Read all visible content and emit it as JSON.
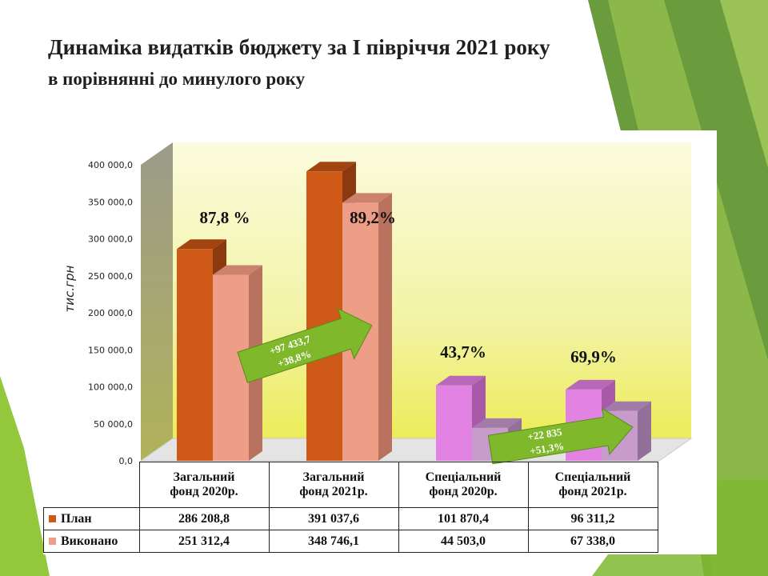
{
  "slide": {
    "title_line1": "Динаміка видатків бюджету за І півріччя 2021 року",
    "title_line2": "в порівнянні до минулого року"
  },
  "colors": {
    "plan_front": "#cf5a18",
    "plan_side": "#8a3a0e",
    "plan_top": "#a2440f",
    "exec_front": "#ee9d86",
    "exec_side": "#b8725e",
    "exec_top": "#cc826c",
    "spec_plan_front": "#e282e2",
    "spec_plan_side": "#a85aa8",
    "spec_plan_top": "#b868b8",
    "spec_exec_front": "#c79ccb",
    "spec_exec_side": "#93709a",
    "spec_exec_top": "#a37ba8",
    "arrow": "#7fb82a",
    "accent_green": "#8cc63f"
  },
  "chart_data": {
    "type": "bar",
    "ylabel": "тис.грн",
    "ylim": [
      0,
      400000
    ],
    "yticks": [
      "0,0",
      "50 000,0",
      "100 000,0",
      "150 000,0",
      "200 000,0",
      "250 000,0",
      "300 000,0",
      "350 000,0",
      "400 000,0"
    ],
    "categories": [
      [
        "Загальний",
        "фонд 2020р."
      ],
      [
        "Загальний",
        "фонд 2021р."
      ],
      [
        "Спеціальний",
        "фонд 2020р."
      ],
      [
        "Спеціальний",
        "фонд 2021р."
      ]
    ],
    "series": [
      {
        "name": "План",
        "values": [
          286208.8,
          391037.6,
          101870.4,
          96311.2
        ],
        "labels": [
          "286 208,8",
          "391 037,6",
          "101 870,4",
          "96 311,2"
        ]
      },
      {
        "name": "Виконано",
        "values": [
          251312.4,
          348746.1,
          44503.0,
          67338.0
        ],
        "labels": [
          "251 312,4",
          "348 746,1",
          "44 503,0",
          "67 338,0"
        ]
      }
    ],
    "percent_labels": [
      "87,8 %",
      "89,2%",
      "43,7%",
      "69,9%"
    ],
    "arrows": [
      {
        "line1": "+97 433,7",
        "line2": "+38,8%"
      },
      {
        "line1": "+22 835",
        "line2": "+51,3%"
      }
    ],
    "grid": false,
    "legend": "table-bottom"
  }
}
